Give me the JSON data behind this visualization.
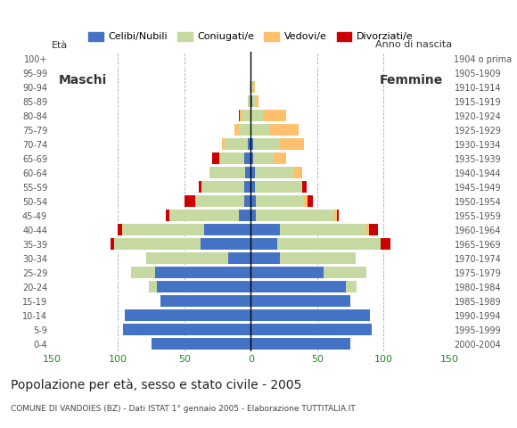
{
  "age_groups": [
    "0-4",
    "5-9",
    "10-14",
    "15-19",
    "20-24",
    "25-29",
    "30-34",
    "35-39",
    "40-44",
    "45-49",
    "50-54",
    "55-59",
    "60-64",
    "65-69",
    "70-74",
    "75-79",
    "80-84",
    "85-89",
    "90-94",
    "95-99",
    "100+"
  ],
  "birth_years": [
    "2000-2004",
    "1995-1999",
    "1990-1994",
    "1985-1989",
    "1980-1984",
    "1975-1979",
    "1970-1974",
    "1965-1969",
    "1960-1964",
    "1955-1959",
    "1950-1954",
    "1945-1949",
    "1940-1944",
    "1935-1939",
    "1930-1934",
    "1925-1929",
    "1920-1924",
    "1915-1919",
    "1910-1914",
    "1905-1909",
    "1904 o prima"
  ],
  "male": {
    "celibe": [
      75,
      96,
      95,
      68,
      71,
      72,
      17,
      38,
      35,
      9,
      5,
      5,
      4,
      5,
      2,
      0,
      0,
      0,
      0,
      0,
      0
    ],
    "coniugato": [
      0,
      0,
      0,
      0,
      6,
      18,
      62,
      65,
      62,
      52,
      37,
      32,
      27,
      18,
      18,
      9,
      6,
      2,
      1,
      0,
      0
    ],
    "vedovo": [
      0,
      0,
      0,
      0,
      0,
      0,
      0,
      0,
      0,
      0,
      0,
      0,
      0,
      1,
      2,
      3,
      2,
      0,
      0,
      0,
      0
    ],
    "divorziato": [
      0,
      0,
      0,
      0,
      0,
      0,
      0,
      3,
      3,
      3,
      8,
      2,
      0,
      5,
      0,
      0,
      1,
      0,
      0,
      0,
      0
    ]
  },
  "female": {
    "nubile": [
      75,
      91,
      90,
      75,
      72,
      55,
      22,
      20,
      22,
      4,
      4,
      3,
      3,
      2,
      2,
      0,
      0,
      1,
      0,
      0,
      0
    ],
    "coniugata": [
      0,
      0,
      0,
      0,
      8,
      32,
      57,
      78,
      65,
      59,
      36,
      36,
      29,
      15,
      20,
      14,
      9,
      2,
      2,
      0,
      0
    ],
    "vedova": [
      0,
      0,
      0,
      0,
      0,
      0,
      0,
      0,
      2,
      2,
      3,
      0,
      7,
      10,
      18,
      22,
      18,
      3,
      1,
      0,
      0
    ],
    "divorziata": [
      0,
      0,
      0,
      0,
      0,
      0,
      0,
      7,
      7,
      1,
      4,
      3,
      0,
      0,
      0,
      0,
      0,
      0,
      0,
      0,
      0
    ]
  },
  "colors": {
    "celibe": "#4472c4",
    "coniugato": "#c5d9a0",
    "vedovo": "#ffc06e",
    "divorziato": "#cc0000"
  },
  "xlim": 150,
  "xticks": [
    -150,
    -100,
    -50,
    0,
    50,
    100,
    150
  ],
  "xticklabels": [
    "150",
    "100",
    "50",
    "0",
    "50",
    "100",
    "150"
  ],
  "title": "Popolazione per età, sesso e stato civile - 2005",
  "subtitle": "COMUNE DI VANDOIES (BZ) - Dati ISTAT 1° gennaio 2005 - Elaborazione TUTTITALIA.IT",
  "ylabel_left": "Età",
  "ylabel_right": "Anno di nascita",
  "label_maschi": "Maschi",
  "label_femmine": "Femmine",
  "legend_labels": [
    "Celibi/Nubili",
    "Coniugati/e",
    "Vedovi/e",
    "Divorziati/e"
  ],
  "bg_color": "#ffffff",
  "bar_height": 0.85
}
